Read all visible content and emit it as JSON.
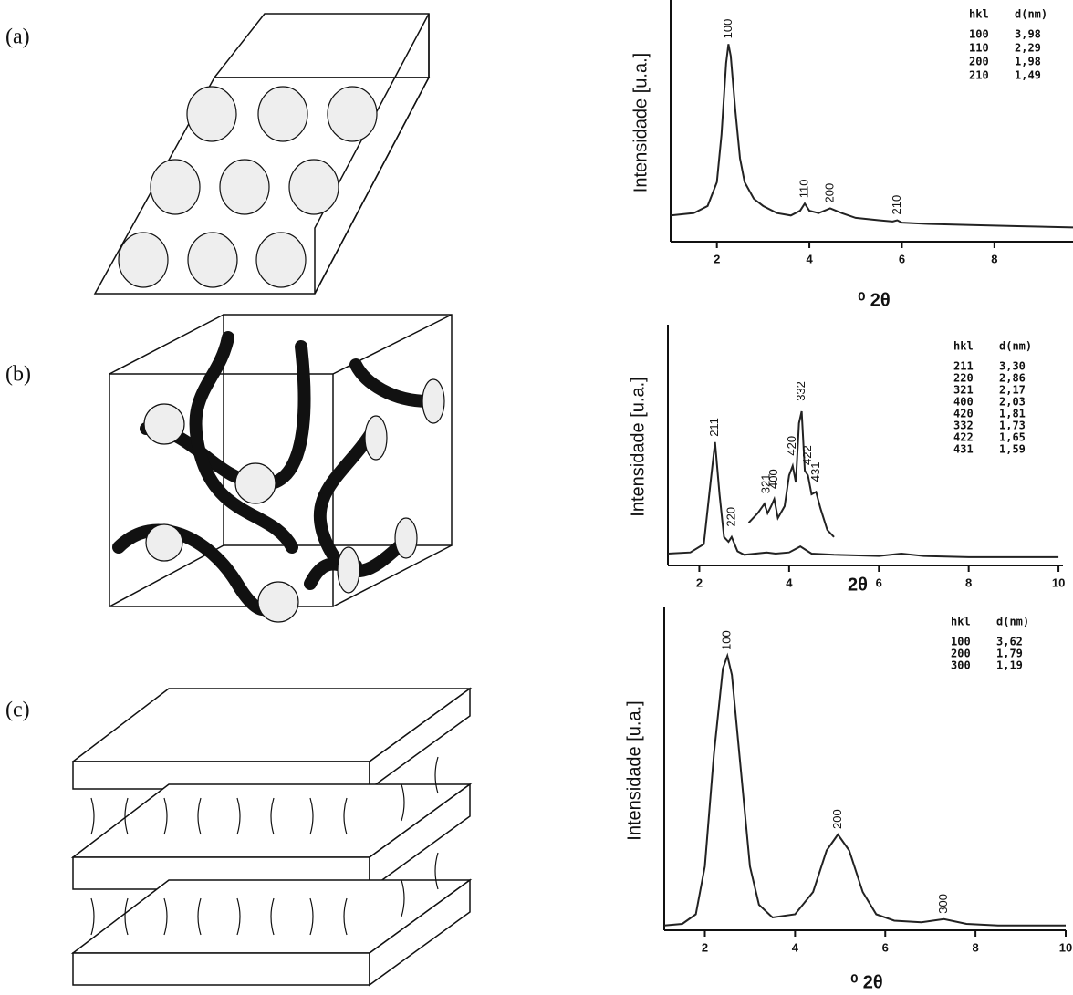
{
  "chart_data": [
    {
      "type": "line",
      "panel_label": "(a)",
      "y_label": "Intensidade [u.a.]",
      "x_label": "⁰ 2θ",
      "xlim": [
        1,
        9.7
      ],
      "ylim": [
        0,
        100
      ],
      "xticks": [
        2,
        4,
        6,
        8
      ],
      "color": "#222222",
      "series": [
        {
          "x": [
            1.0,
            1.5,
            1.8,
            2.0,
            2.1,
            2.2,
            2.25,
            2.3,
            2.4,
            2.5,
            2.6,
            2.8,
            3.0,
            3.3,
            3.6,
            3.8,
            3.9,
            4.0,
            4.2,
            4.45,
            4.7,
            5.0,
            5.5,
            5.8,
            5.9,
            6.0,
            6.5,
            7.5,
            8.5,
            9.7
          ],
          "values": [
            11,
            12,
            15,
            25,
            45,
            75,
            83,
            78,
            55,
            35,
            25,
            18,
            15,
            12,
            11,
            13,
            16,
            13,
            12,
            14,
            12,
            10,
            9,
            8.5,
            9,
            8,
            7.5,
            7,
            6.5,
            6
          ]
        }
      ],
      "annotations": [
        {
          "text": "100",
          "x": 2.25,
          "y": 83
        },
        {
          "text": "110",
          "x": 3.9,
          "y": 16
        },
        {
          "text": "200",
          "x": 4.45,
          "y": 14
        },
        {
          "text": "210",
          "x": 5.9,
          "y": 9
        }
      ],
      "table": {
        "header": [
          "hkl",
          "d(nm)"
        ],
        "rows": [
          [
            "100",
            "3,98"
          ],
          [
            "110",
            "2,29"
          ],
          [
            "200",
            "1,98"
          ],
          [
            "210",
            "1,49"
          ]
        ]
      }
    },
    {
      "type": "line",
      "panel_label": "(b)",
      "y_label": "Intensidade [u.a.]",
      "x_label": "2θ",
      "xlim": [
        1.3,
        10.1
      ],
      "ylim": [
        0,
        100
      ],
      "xticks": [
        2,
        4,
        6,
        8,
        10
      ],
      "color": "#222222",
      "series": [
        {
          "x": [
            1.3,
            1.8,
            2.1,
            2.25,
            2.35,
            2.45,
            2.55,
            2.65,
            2.72,
            2.85,
            3.0,
            3.5,
            3.7,
            4.0,
            4.25,
            4.5,
            5.0,
            6.0,
            6.5,
            7.0,
            8.0,
            10.0
          ],
          "values": [
            5,
            5.5,
            9,
            35,
            52,
            30,
            12,
            10,
            12,
            6,
            4.5,
            5.5,
            5,
            5.5,
            8,
            5,
            4.5,
            4,
            5,
            4,
            3.5,
            3.5
          ]
        },
        {
          "x": [
            3.1,
            3.3,
            3.45,
            3.52,
            3.6,
            3.67,
            3.75,
            3.9,
            4.0,
            4.08,
            4.15,
            4.22,
            4.28,
            4.35,
            4.42,
            4.5,
            4.6,
            4.7,
            4.85,
            5.0
          ],
          "values": [
            18,
            22,
            26,
            22,
            25,
            28,
            20,
            25,
            38,
            42,
            35,
            60,
            65,
            40,
            38,
            30,
            31,
            24,
            15,
            12
          ]
        }
      ],
      "annotations": [
        {
          "text": "211",
          "x": 2.35,
          "y": 52
        },
        {
          "text": "220",
          "x": 2.72,
          "y": 14
        },
        {
          "text": "321",
          "x": 3.5,
          "y": 28
        },
        {
          "text": "400",
          "x": 3.67,
          "y": 30
        },
        {
          "text": "420",
          "x": 4.08,
          "y": 44
        },
        {
          "text": "332",
          "x": 4.28,
          "y": 67
        },
        {
          "text": "422",
          "x": 4.42,
          "y": 40
        },
        {
          "text": "431",
          "x": 4.6,
          "y": 33
        }
      ],
      "table": {
        "header": [
          "hkl",
          "d(nm)"
        ],
        "rows": [
          [
            "211",
            "3,30"
          ],
          [
            "220",
            "2,86"
          ],
          [
            "321",
            "2,17"
          ],
          [
            "400",
            "2,03"
          ],
          [
            "420",
            "1,81"
          ],
          [
            "332",
            "1,73"
          ],
          [
            "422",
            "1,65"
          ],
          [
            "431",
            "1,59"
          ]
        ]
      }
    },
    {
      "type": "line",
      "panel_label": "(c)",
      "y_label": "Intensidade [u.a.]",
      "x_label": "⁰ 2θ",
      "xlim": [
        1.1,
        10
      ],
      "ylim": [
        0,
        100
      ],
      "xticks": [
        2,
        4,
        6,
        8,
        10
      ],
      "color": "#222222",
      "series": [
        {
          "x": [
            1.1,
            1.5,
            1.8,
            2.0,
            2.2,
            2.4,
            2.5,
            2.6,
            2.8,
            3.0,
            3.2,
            3.5,
            4.0,
            4.4,
            4.7,
            4.95,
            5.2,
            5.5,
            5.8,
            6.2,
            6.8,
            7.3,
            7.8,
            8.5,
            10
          ],
          "values": [
            1.5,
            2,
            5,
            20,
            55,
            82,
            86,
            80,
            50,
            20,
            8,
            4,
            5,
            12,
            25,
            30,
            25,
            12,
            5,
            3,
            2.5,
            3.5,
            2,
            1.5,
            1.5
          ]
        }
      ],
      "annotations": [
        {
          "text": "100",
          "x": 2.5,
          "y": 86
        },
        {
          "text": "200",
          "x": 4.95,
          "y": 30
        },
        {
          "text": "300",
          "x": 7.3,
          "y": 3.5
        }
      ],
      "table": {
        "header": [
          "hkl",
          "d(nm)"
        ],
        "rows": [
          [
            "100",
            "3,62"
          ],
          [
            "200",
            "1,79"
          ],
          [
            "300",
            "1,19"
          ]
        ]
      }
    }
  ]
}
